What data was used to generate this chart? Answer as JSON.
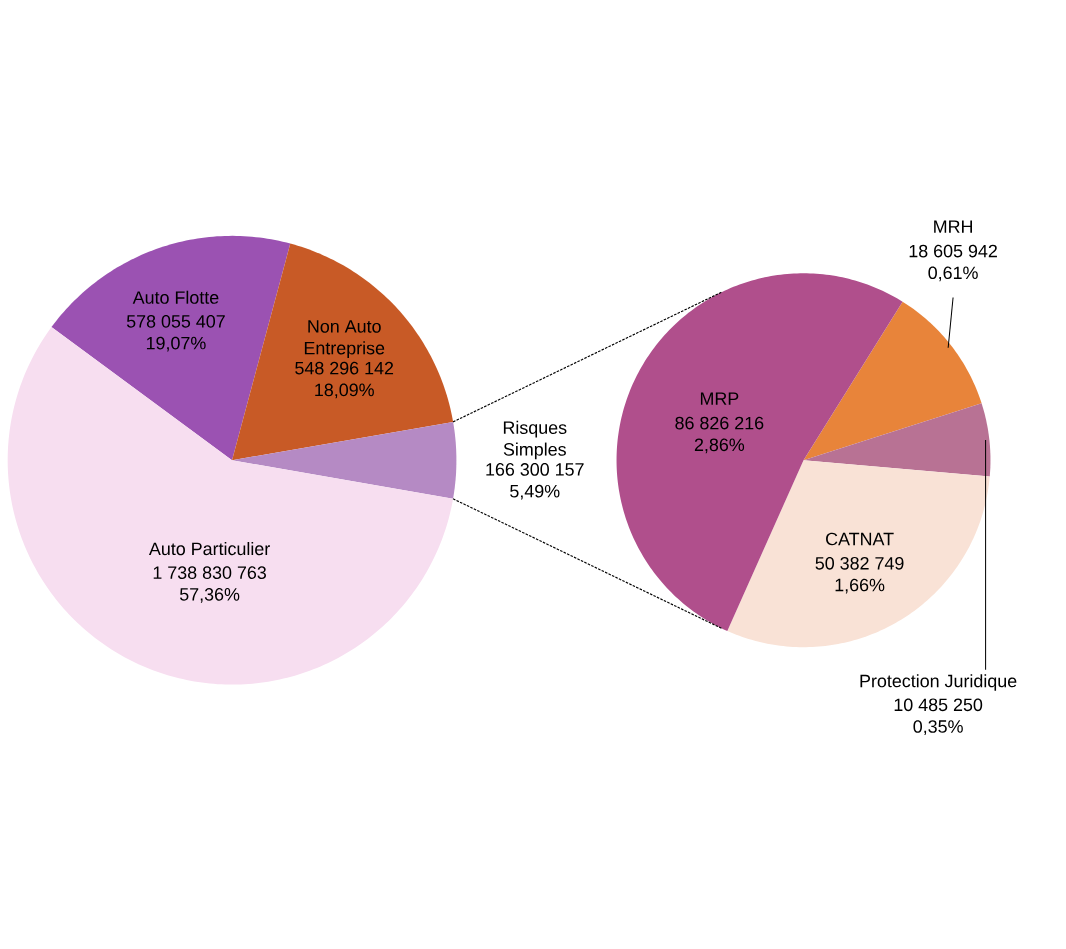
{
  "chart_data": [
    {
      "type": "pie",
      "categories": [
        "Auto Flotte",
        "Non Auto Entreprise",
        "Risques Simples",
        "Auto Particulier"
      ],
      "values": [
        578055407,
        548296142,
        166300157,
        1738830763
      ],
      "colors": [
        "#9b52b2",
        "#c85a26",
        "#b58ac4",
        "#f7def0"
      ],
      "value_labels": [
        "578 055 407 19,07%",
        "548 296 142 18,09%",
        "166 300 157 5,49%",
        "1 738 830 763 57,36%"
      ]
    },
    {
      "type": "pie",
      "categories": [
        "MRH",
        "Protection Juridique",
        "CATNAT",
        "MRP"
      ],
      "values": [
        18605942,
        10485250,
        50382749,
        86826216
      ],
      "colors": [
        "#e8843a",
        "#b87294",
        "#f9e2d6",
        "#b04f8c"
      ],
      "value_labels": [
        "18 605 942 0,61%",
        "10 485 250 0,35%",
        "50 382 749 1,66%",
        "86 826 216 2,86%"
      ]
    }
  ]
}
